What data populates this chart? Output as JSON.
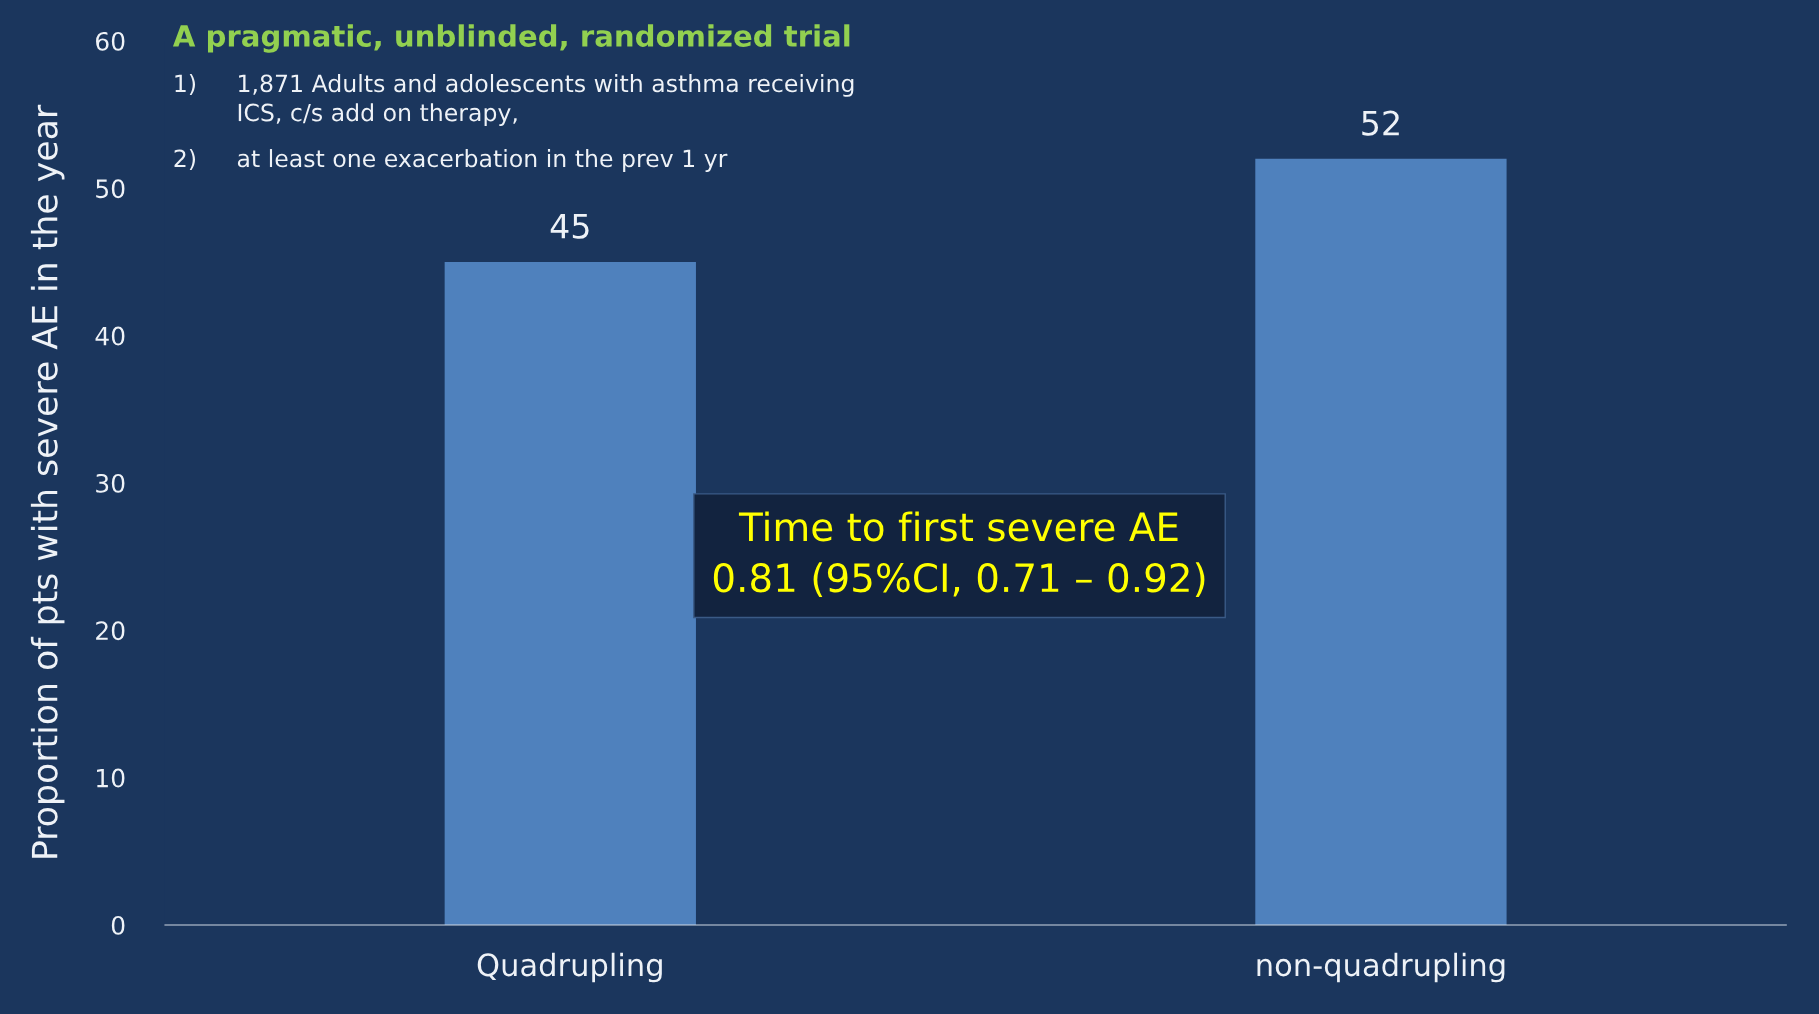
{
  "chart_data": {
    "type": "bar",
    "title": "A pragmatic, unblinded, randomized trial",
    "ylabel": "Proportion of pts with severe AE in the year",
    "categories": [
      "Quadrupling",
      "non-quadrupling"
    ],
    "values": [
      45,
      52
    ],
    "color": "#4f81bd",
    "ylim": [
      0,
      60
    ],
    "yticks": [
      0,
      10,
      20,
      30,
      40,
      50,
      60
    ],
    "data_labels": true,
    "grid": false,
    "legend": false,
    "annotations": [
      "1)",
      "1,871 Adults and adolescents with asthma receiving\nICS, c/s add on therapy,",
      "2)",
      "at least one exacerbation in the prev 1 yr",
      "Time to first severe AE\n0.81 (95%CI, 0.71 – 0.92)"
    ]
  }
}
